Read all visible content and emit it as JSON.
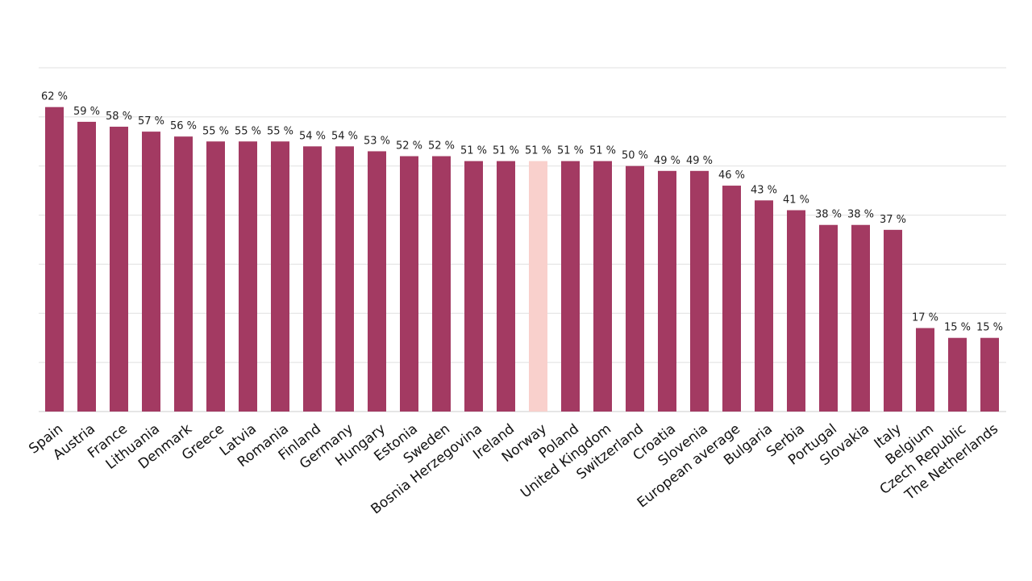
{
  "chart_data": {
    "type": "bar",
    "title": "",
    "xlabel": "",
    "ylabel": "",
    "ylim": [
      0,
      70
    ],
    "grid": true,
    "unit_suffix": " %",
    "categories": [
      "Spain",
      "Austria",
      "France",
      "Lithuania",
      "Denmark",
      "Greece",
      "Latvia",
      "Romania",
      "Finland",
      "Germany",
      "Hungary",
      "Estonia",
      "Sweden",
      "Bosnia Herzegovina",
      "Ireland",
      "Norway",
      "Poland",
      "United Kingdom",
      "Switzerland",
      "Croatia",
      "Slovenia",
      "European average",
      "Bulgaria",
      "Serbia",
      "Portugal",
      "Slovakia",
      "Italy",
      "Belgium",
      "Czech Republic",
      "The Netherlands"
    ],
    "values": [
      62,
      59,
      58,
      57,
      56,
      55,
      55,
      55,
      54,
      54,
      53,
      52,
      52,
      51,
      51,
      51,
      51,
      51,
      50,
      49,
      49,
      46,
      43,
      41,
      38,
      38,
      37,
      17,
      15,
      15
    ],
    "bar_color": "#a33a62",
    "highlight_color": "#f9d0cc",
    "highlight_category": "Norway"
  }
}
